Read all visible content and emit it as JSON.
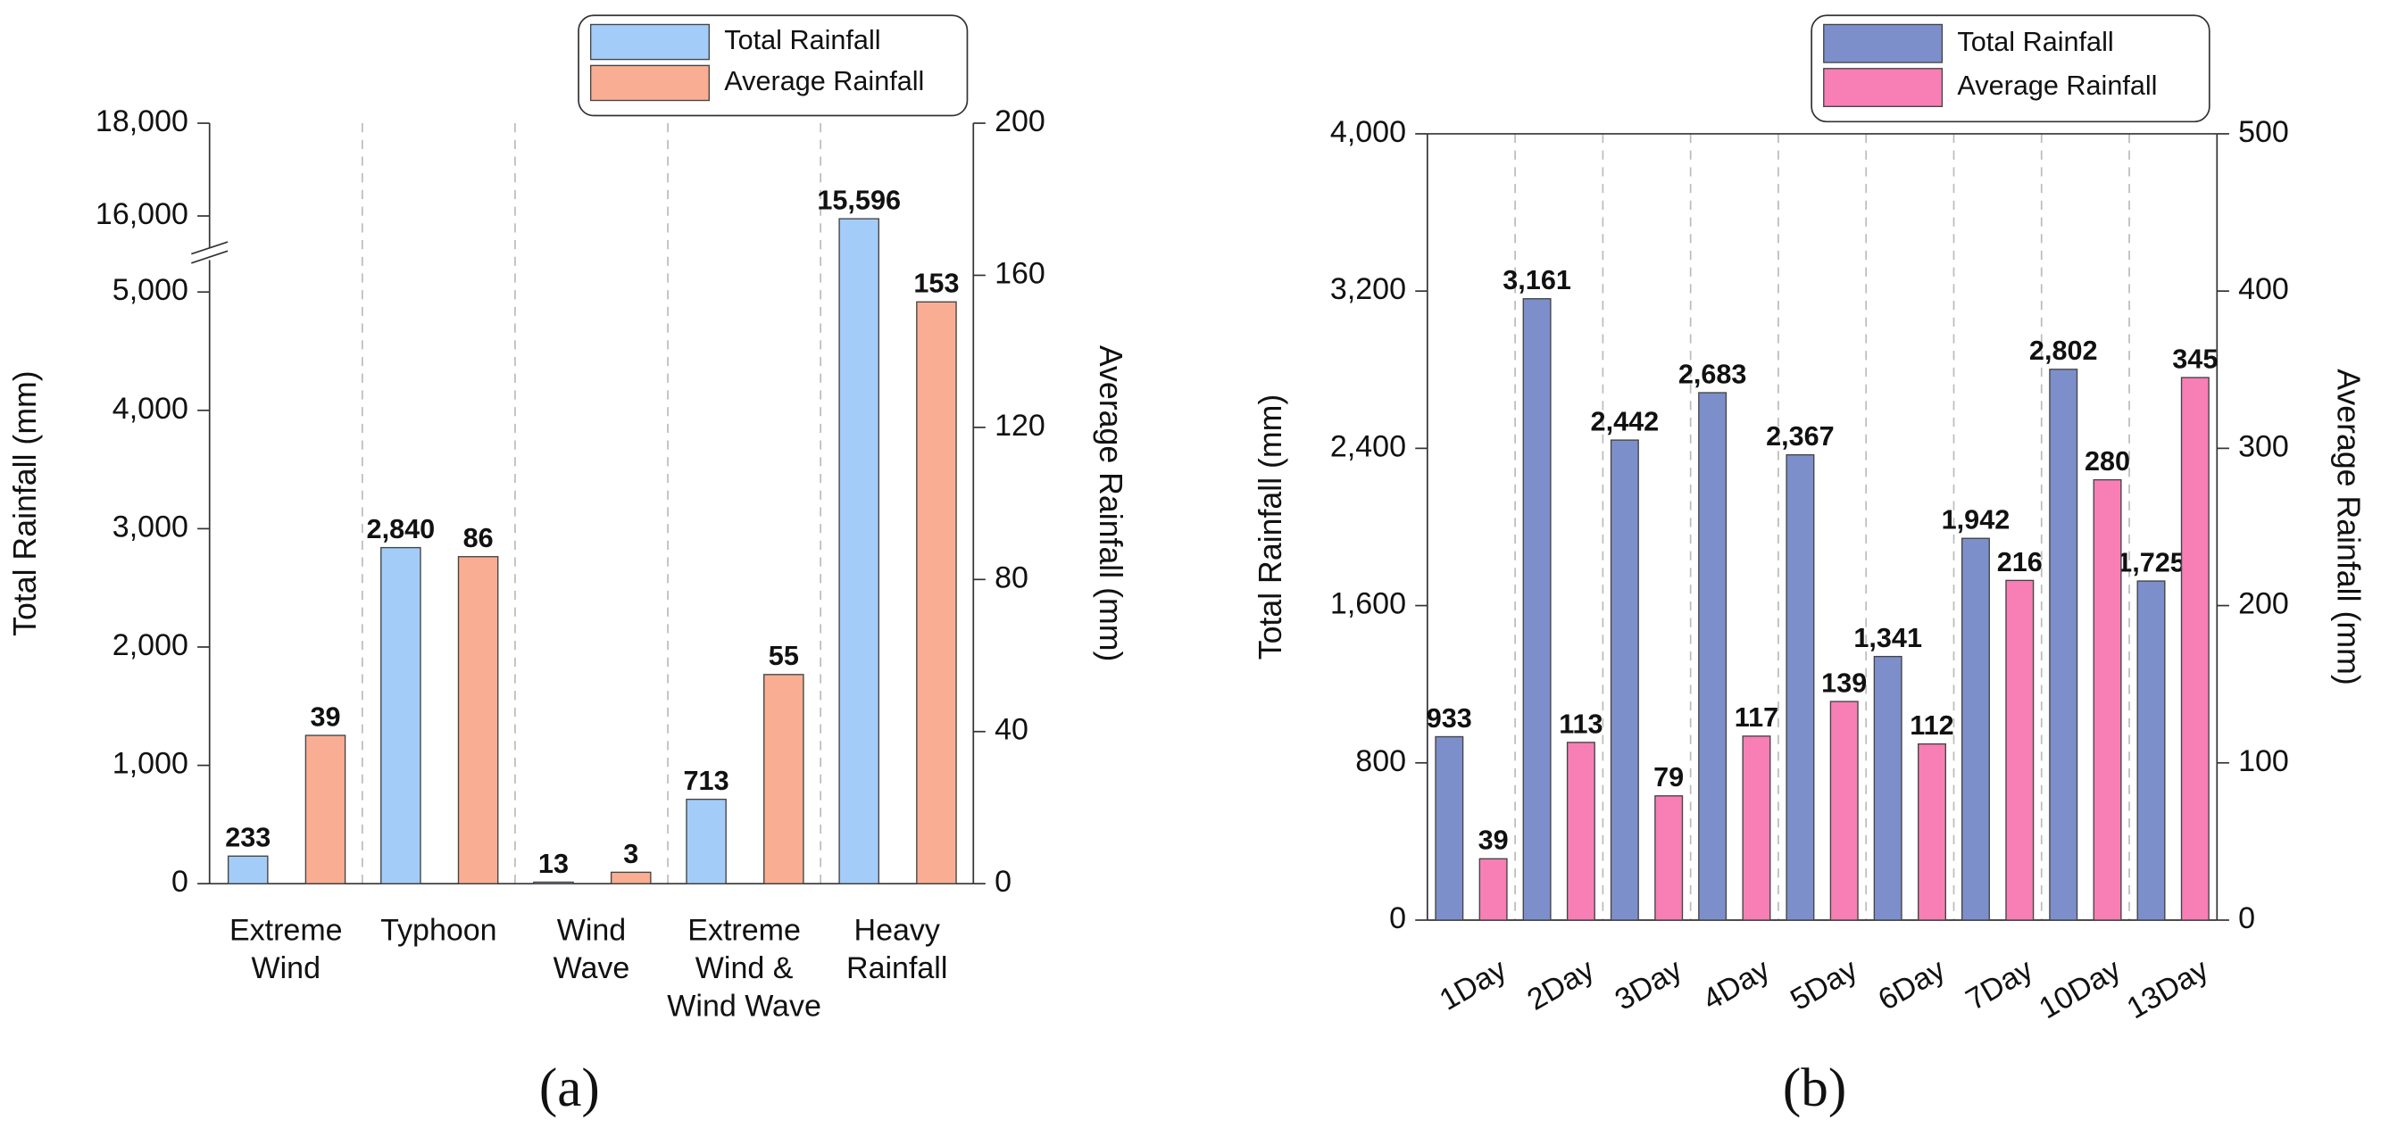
{
  "chart_data": [
    {
      "type": "bar",
      "subtitle": "(a)",
      "categories": [
        [
          "Extreme",
          "Wind"
        ],
        [
          "Typhoon"
        ],
        [
          "Wind",
          "Wave"
        ],
        [
          "Extreme",
          "Wind &",
          "Wind Wave"
        ],
        [
          "Heavy",
          "Rainfall"
        ]
      ],
      "ylabel": "Total Rainfall (mm)",
      "y2label": "Average Rainfall (mm)",
      "ylim": [
        0,
        18000
      ],
      "axis_break": [
        5000,
        16000
      ],
      "yticks": [
        0,
        {
          "value": 1000,
          "label": "1,000"
        },
        {
          "value": 2000,
          "label": "2,000"
        },
        {
          "value": 3000,
          "label": "3,000"
        },
        {
          "value": 4000,
          "label": "4,000"
        },
        {
          "value": 5000,
          "label": "5,000"
        },
        {
          "value": 16000,
          "label": "16,000"
        },
        {
          "value": 18000,
          "label": "18,000"
        }
      ],
      "y2lim": [
        0,
        200
      ],
      "y2ticks": [
        0,
        40,
        80,
        120,
        160,
        200
      ],
      "legend": "top-right",
      "series": [
        {
          "name": "Total Rainfall",
          "color": "#a3cdf8",
          "values": [
            233,
            2840,
            13,
            713,
            15596
          ],
          "value_labels": [
            "233",
            "2,840",
            "13",
            "713",
            "15,596"
          ]
        },
        {
          "name": "Average Rainfall",
          "color": "#f9ae93",
          "axis": "y2",
          "values": [
            39,
            86,
            3,
            55,
            153
          ]
        }
      ]
    },
    {
      "type": "bar",
      "subtitle": "(b)",
      "categories": [
        "1Day",
        "2Day",
        "3Day",
        "4Day",
        "5Day",
        "6Day",
        "7Day",
        "10Day",
        "13Day"
      ],
      "ylabel": "Total Rainfall (mm)",
      "y2label": "Average Rainfall (mm)",
      "ylim": [
        0,
        4000
      ],
      "yticks": [
        0,
        800,
        {
          "value": 1600,
          "label": "1,600"
        },
        {
          "value": 2400,
          "label": "2,400"
        },
        {
          "value": 3200,
          "label": "3,200"
        },
        {
          "value": 4000,
          "label": "4,000"
        }
      ],
      "y2lim": [
        0,
        500
      ],
      "y2ticks": [
        0,
        100,
        200,
        300,
        400,
        500
      ],
      "legend": "top-right",
      "series": [
        {
          "name": "Total Rainfall",
          "color": "#7d8fcb",
          "values": [
            933,
            3161,
            2442,
            2683,
            2367,
            1341,
            1942,
            2802,
            1725
          ],
          "value_labels": [
            "933",
            "3,161",
            "2,442",
            "2,683",
            "2,367",
            "1,341",
            "1,942",
            "2,802",
            "1,725"
          ]
        },
        {
          "name": "Average Rainfall",
          "color": "#f77fb5",
          "axis": "y2",
          "values": [
            39,
            113,
            79,
            117,
            139,
            112,
            216,
            280,
            345
          ]
        }
      ]
    }
  ]
}
